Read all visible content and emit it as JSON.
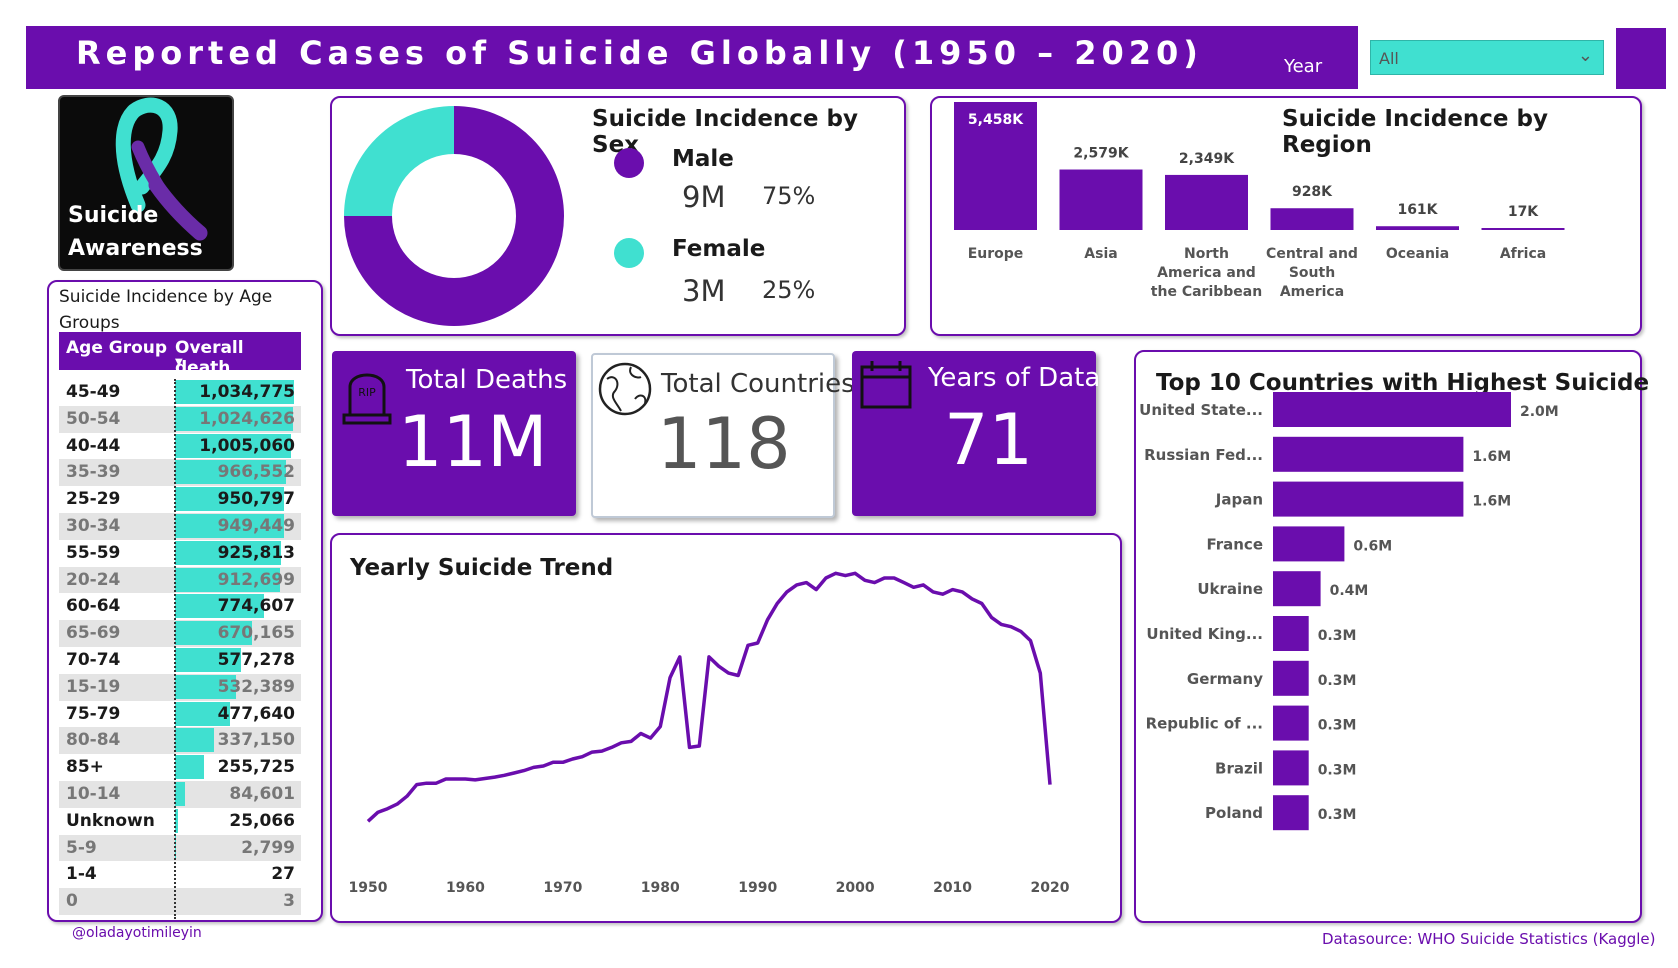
{
  "header": {
    "title": "Reported Cases of Suicide Globally (1950 – 2020)",
    "year_label": "Year",
    "year_select_value": "All"
  },
  "logo": {
    "line1": "Suicide",
    "line2": "Awareness"
  },
  "kpis": {
    "total_deaths": {
      "label": "Total Deaths",
      "value": "11M"
    },
    "total_countries": {
      "label": "Total Countries",
      "value": "118"
    },
    "years_of_data": {
      "label": "Years of Data",
      "value": "71"
    }
  },
  "footer": {
    "credit": "@oladayotimileyin",
    "source": "Datasource: WHO Suicide Statistics (Kaggle)"
  },
  "colors": {
    "purple": "#6a0dad",
    "teal": "#40e0d0"
  },
  "chart_data": [
    {
      "id": "age",
      "type": "table",
      "title": "Suicide Incidence by Age Groups",
      "columns": [
        "Age Group",
        "Overall death"
      ],
      "rows": [
        {
          "label": "45-49",
          "value": 1034775,
          "display": "1,034,775"
        },
        {
          "label": "50-54",
          "value": 1024626,
          "display": "1,024,626"
        },
        {
          "label": "40-44",
          "value": 1005060,
          "display": "1,005,060"
        },
        {
          "label": "35-39",
          "value": 966552,
          "display": "966,552"
        },
        {
          "label": "25-29",
          "value": 950797,
          "display": "950,797"
        },
        {
          "label": "30-34",
          "value": 949449,
          "display": "949,449"
        },
        {
          "label": "55-59",
          "value": 925813,
          "display": "925,813"
        },
        {
          "label": "20-24",
          "value": 912699,
          "display": "912,699"
        },
        {
          "label": "60-64",
          "value": 774607,
          "display": "774,607"
        },
        {
          "label": "65-69",
          "value": 670165,
          "display": "670,165"
        },
        {
          "label": "70-74",
          "value": 577278,
          "display": "577,278"
        },
        {
          "label": "15-19",
          "value": 532389,
          "display": "532,389"
        },
        {
          "label": "75-79",
          "value": 477640,
          "display": "477,640"
        },
        {
          "label": "80-84",
          "value": 337150,
          "display": "337,150"
        },
        {
          "label": "85+",
          "value": 255725,
          "display": "255,725"
        },
        {
          "label": "10-14",
          "value": 84601,
          "display": "84,601"
        },
        {
          "label": "Unknown",
          "value": 25066,
          "display": "25,066"
        },
        {
          "label": "5-9",
          "value": 2799,
          "display": "2,799"
        },
        {
          "label": "1-4",
          "value": 27,
          "display": "27"
        },
        {
          "label": "0",
          "value": 3,
          "display": "3"
        }
      ]
    },
    {
      "id": "sex",
      "type": "pie",
      "title": "Suicide Incidence by Sex",
      "categories": [
        "Male",
        "Female"
      ],
      "values": [
        75,
        25
      ],
      "value_labels": [
        "9M",
        "3M"
      ],
      "pct_labels": [
        "75%",
        "25%"
      ],
      "colors": [
        "#6a0dad",
        "#40e0d0"
      ]
    },
    {
      "id": "region",
      "type": "bar",
      "title": "Suicide Incidence by Region",
      "categories": [
        "Europe",
        "Asia",
        "North America and the Caribbean",
        "Central and South America",
        "Oceania",
        "Africa"
      ],
      "category_lines": [
        [
          "Europe"
        ],
        [
          "Asia"
        ],
        [
          "North",
          "America and",
          "the Caribbean"
        ],
        [
          "Central and",
          "South",
          "America"
        ],
        [
          "Oceania"
        ],
        [
          "Africa"
        ]
      ],
      "values": [
        5458,
        2579,
        2349,
        928,
        161,
        17
      ],
      "labels": [
        "5,458K",
        "2,579K",
        "2,349K",
        "928K",
        "161K",
        "17K"
      ],
      "unit": "K"
    },
    {
      "id": "trend",
      "type": "line",
      "title": "Yearly Suicide Trend",
      "x_ticks": [
        "1950",
        "1960",
        "1970",
        "1980",
        "1990",
        "2000",
        "2010",
        "2020"
      ],
      "x": [
        1950,
        1951,
        1952,
        1953,
        1954,
        1955,
        1956,
        1957,
        1958,
        1959,
        1960,
        1961,
        1962,
        1963,
        1964,
        1965,
        1966,
        1967,
        1968,
        1969,
        1970,
        1971,
        1972,
        1973,
        1974,
        1975,
        1976,
        1977,
        1978,
        1979,
        1980,
        1981,
        1982,
        1983,
        1984,
        1985,
        1986,
        1987,
        1988,
        1989,
        1990,
        1991,
        1992,
        1993,
        1994,
        1995,
        1996,
        1997,
        1998,
        1999,
        2000,
        2001,
        2002,
        2003,
        2004,
        2005,
        2006,
        2007,
        2008,
        2009,
        2010,
        2011,
        2012,
        2013,
        2014,
        2015,
        2016,
        2017,
        2018,
        2019,
        2020
      ],
      "values": [
        21,
        40,
        48,
        58,
        75,
        100,
        103,
        103,
        112,
        112,
        112,
        110,
        113,
        116,
        120,
        125,
        130,
        137,
        140,
        148,
        148,
        155,
        160,
        170,
        172,
        180,
        190,
        193,
        210,
        200,
        225,
        330,
        375,
        180,
        183,
        375,
        355,
        340,
        335,
        400,
        405,
        455,
        490,
        515,
        530,
        535,
        520,
        545,
        555,
        550,
        555,
        540,
        535,
        545,
        545,
        535,
        525,
        530,
        515,
        510,
        520,
        515,
        500,
        490,
        460,
        445,
        440,
        430,
        410,
        340,
        100
      ],
      "ylim": [
        0,
        560
      ],
      "y_unit": "thousands (approx.)"
    },
    {
      "id": "top10",
      "type": "bar",
      "orientation": "horizontal",
      "title": "Top 10 Countries with Highest Suicide",
      "categories": [
        "United State...",
        "Russian Fed...",
        "Japan",
        "France",
        "Ukraine",
        "United King...",
        "Germany",
        "Republic of ...",
        "Brazil",
        "Poland"
      ],
      "values": [
        2.0,
        1.6,
        1.6,
        0.6,
        0.4,
        0.3,
        0.3,
        0.3,
        0.3,
        0.3
      ],
      "labels": [
        "2.0M",
        "1.6M",
        "1.6M",
        "0.6M",
        "0.4M",
        "0.3M",
        "0.3M",
        "0.3M",
        "0.3M",
        "0.3M"
      ],
      "unit": "M"
    }
  ]
}
